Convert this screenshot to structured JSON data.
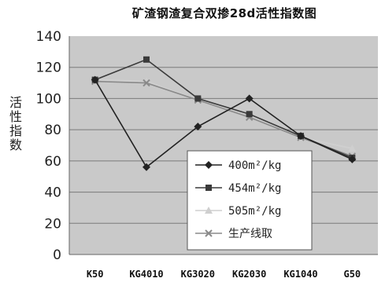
{
  "chart_data": {
    "type": "line",
    "title": "矿渣钢渣复合双掺28d活性指数图",
    "xlabel": "",
    "ylabel": "活性指数",
    "categories": [
      "K50",
      "KG4010",
      "KG3020",
      "KG2030",
      "KG1040",
      "G50"
    ],
    "ylim": [
      0,
      140
    ],
    "yticks": [
      0,
      20,
      40,
      60,
      80,
      100,
      120,
      140
    ],
    "grid": true,
    "legend_position": "bottom-right",
    "series": [
      {
        "name": "400m²/kg",
        "values": [
          112,
          56,
          82,
          100,
          76,
          61
        ],
        "color": "#222222",
        "marker": "diamond"
      },
      {
        "name": "454m²/kg",
        "values": [
          112,
          125,
          100,
          90,
          76,
          62
        ],
        "color": "#3a3a3a",
        "marker": "square"
      },
      {
        "name": "505m²/kg",
        "values": [
          112,
          111,
          99,
          90,
          75,
          68
        ],
        "color": "#cfcfcf",
        "marker": "triangle"
      },
      {
        "name": "生产线取",
        "values": [
          111,
          110,
          99,
          88,
          75,
          63
        ],
        "color": "#8a8a8a",
        "marker": "x"
      }
    ]
  }
}
